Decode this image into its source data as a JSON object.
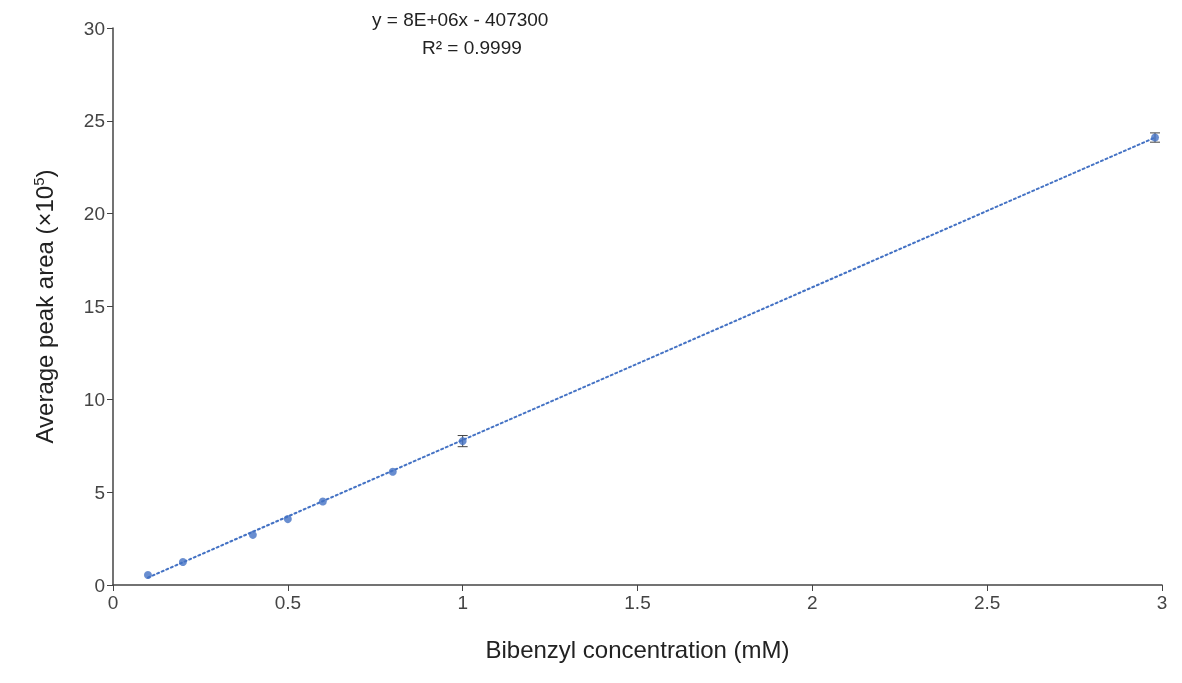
{
  "chart_data": {
    "type": "scatter",
    "xlabel": "Bibenzyl concentration (mM)",
    "ylabel": "Average peak area (×10$^{5}$)",
    "annotations": [
      "y = 8E+06x - 407300",
      "R² = 0.9999"
    ],
    "series": [
      {
        "color": "#4472c4",
        "x": [
          0.1,
          0.2,
          0.4,
          0.5,
          0.6,
          0.8,
          1.0,
          2.98
        ],
        "values": [
          0.54,
          1.24,
          2.7,
          3.55,
          4.5,
          6.1,
          7.75,
          24.1
        ],
        "errors": [
          null,
          null,
          null,
          null,
          null,
          null,
          0.3,
          0.25
        ],
        "marker": "circle"
      },
      {
        "type": "line",
        "color": "#4472c4",
        "x": [
          0.1,
          2.98
        ],
        "values": [
          0.4,
          24.1
        ],
        "line_style": "dotted",
        "marker": "none"
      }
    ],
    "xlim": [
      0,
      3
    ],
    "xticks": [
      0,
      0.5,
      1,
      1.5,
      2,
      2.5,
      3
    ],
    "ylim": [
      0,
      30
    ],
    "yticks": [
      0,
      5,
      10,
      15,
      20,
      25,
      30
    ],
    "grid": false
  }
}
